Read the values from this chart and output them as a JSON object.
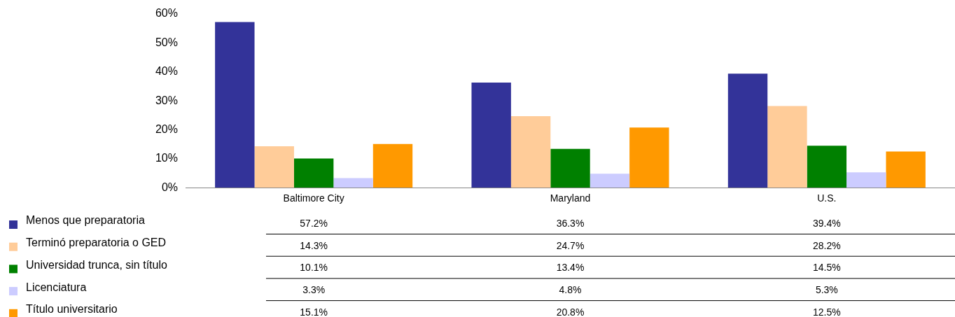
{
  "chart_data": {
    "type": "bar",
    "categories": [
      "Baltimore City",
      "Maryland",
      "U.S."
    ],
    "series": [
      {
        "name": "Menos que preparatoria",
        "color": "#333399",
        "values": [
          57.2,
          36.3,
          39.4
        ],
        "value_labels": [
          "57.2%",
          "36.3%",
          "39.4%"
        ]
      },
      {
        "name": "Terminó preparatoria o GED",
        "color": "#ffcc99",
        "values": [
          14.3,
          24.7,
          28.2
        ],
        "value_labels": [
          "14.3%",
          "24.7%",
          "28.2%"
        ]
      },
      {
        "name": "Universidad trunca, sin título",
        "color": "#008000",
        "values": [
          10.1,
          13.4,
          14.5
        ],
        "value_labels": [
          "10.1%",
          "13.4%",
          "14.5%"
        ]
      },
      {
        "name": "Licenciatura",
        "color": "#ccccff",
        "values": [
          3.3,
          4.8,
          5.3
        ],
        "value_labels": [
          "3.3%",
          "4.8%",
          "5.3%"
        ]
      },
      {
        "name": "Título universitario",
        "color": "#ff9900",
        "values": [
          15.1,
          20.8,
          12.5
        ],
        "value_labels": [
          "15.1%",
          "20.8%",
          "12.5%"
        ]
      }
    ],
    "ylim": [
      0,
      60
    ],
    "yticks": [
      {
        "value": 0,
        "label": "0%"
      },
      {
        "value": 10,
        "label": "10%"
      },
      {
        "value": 20,
        "label": "20%"
      },
      {
        "value": 30,
        "label": "30%"
      },
      {
        "value": 40,
        "label": "40%"
      },
      {
        "value": 50,
        "label": "50%"
      },
      {
        "value": 60,
        "label": "60%"
      }
    ],
    "grid": false,
    "legend": "bottom left"
  }
}
